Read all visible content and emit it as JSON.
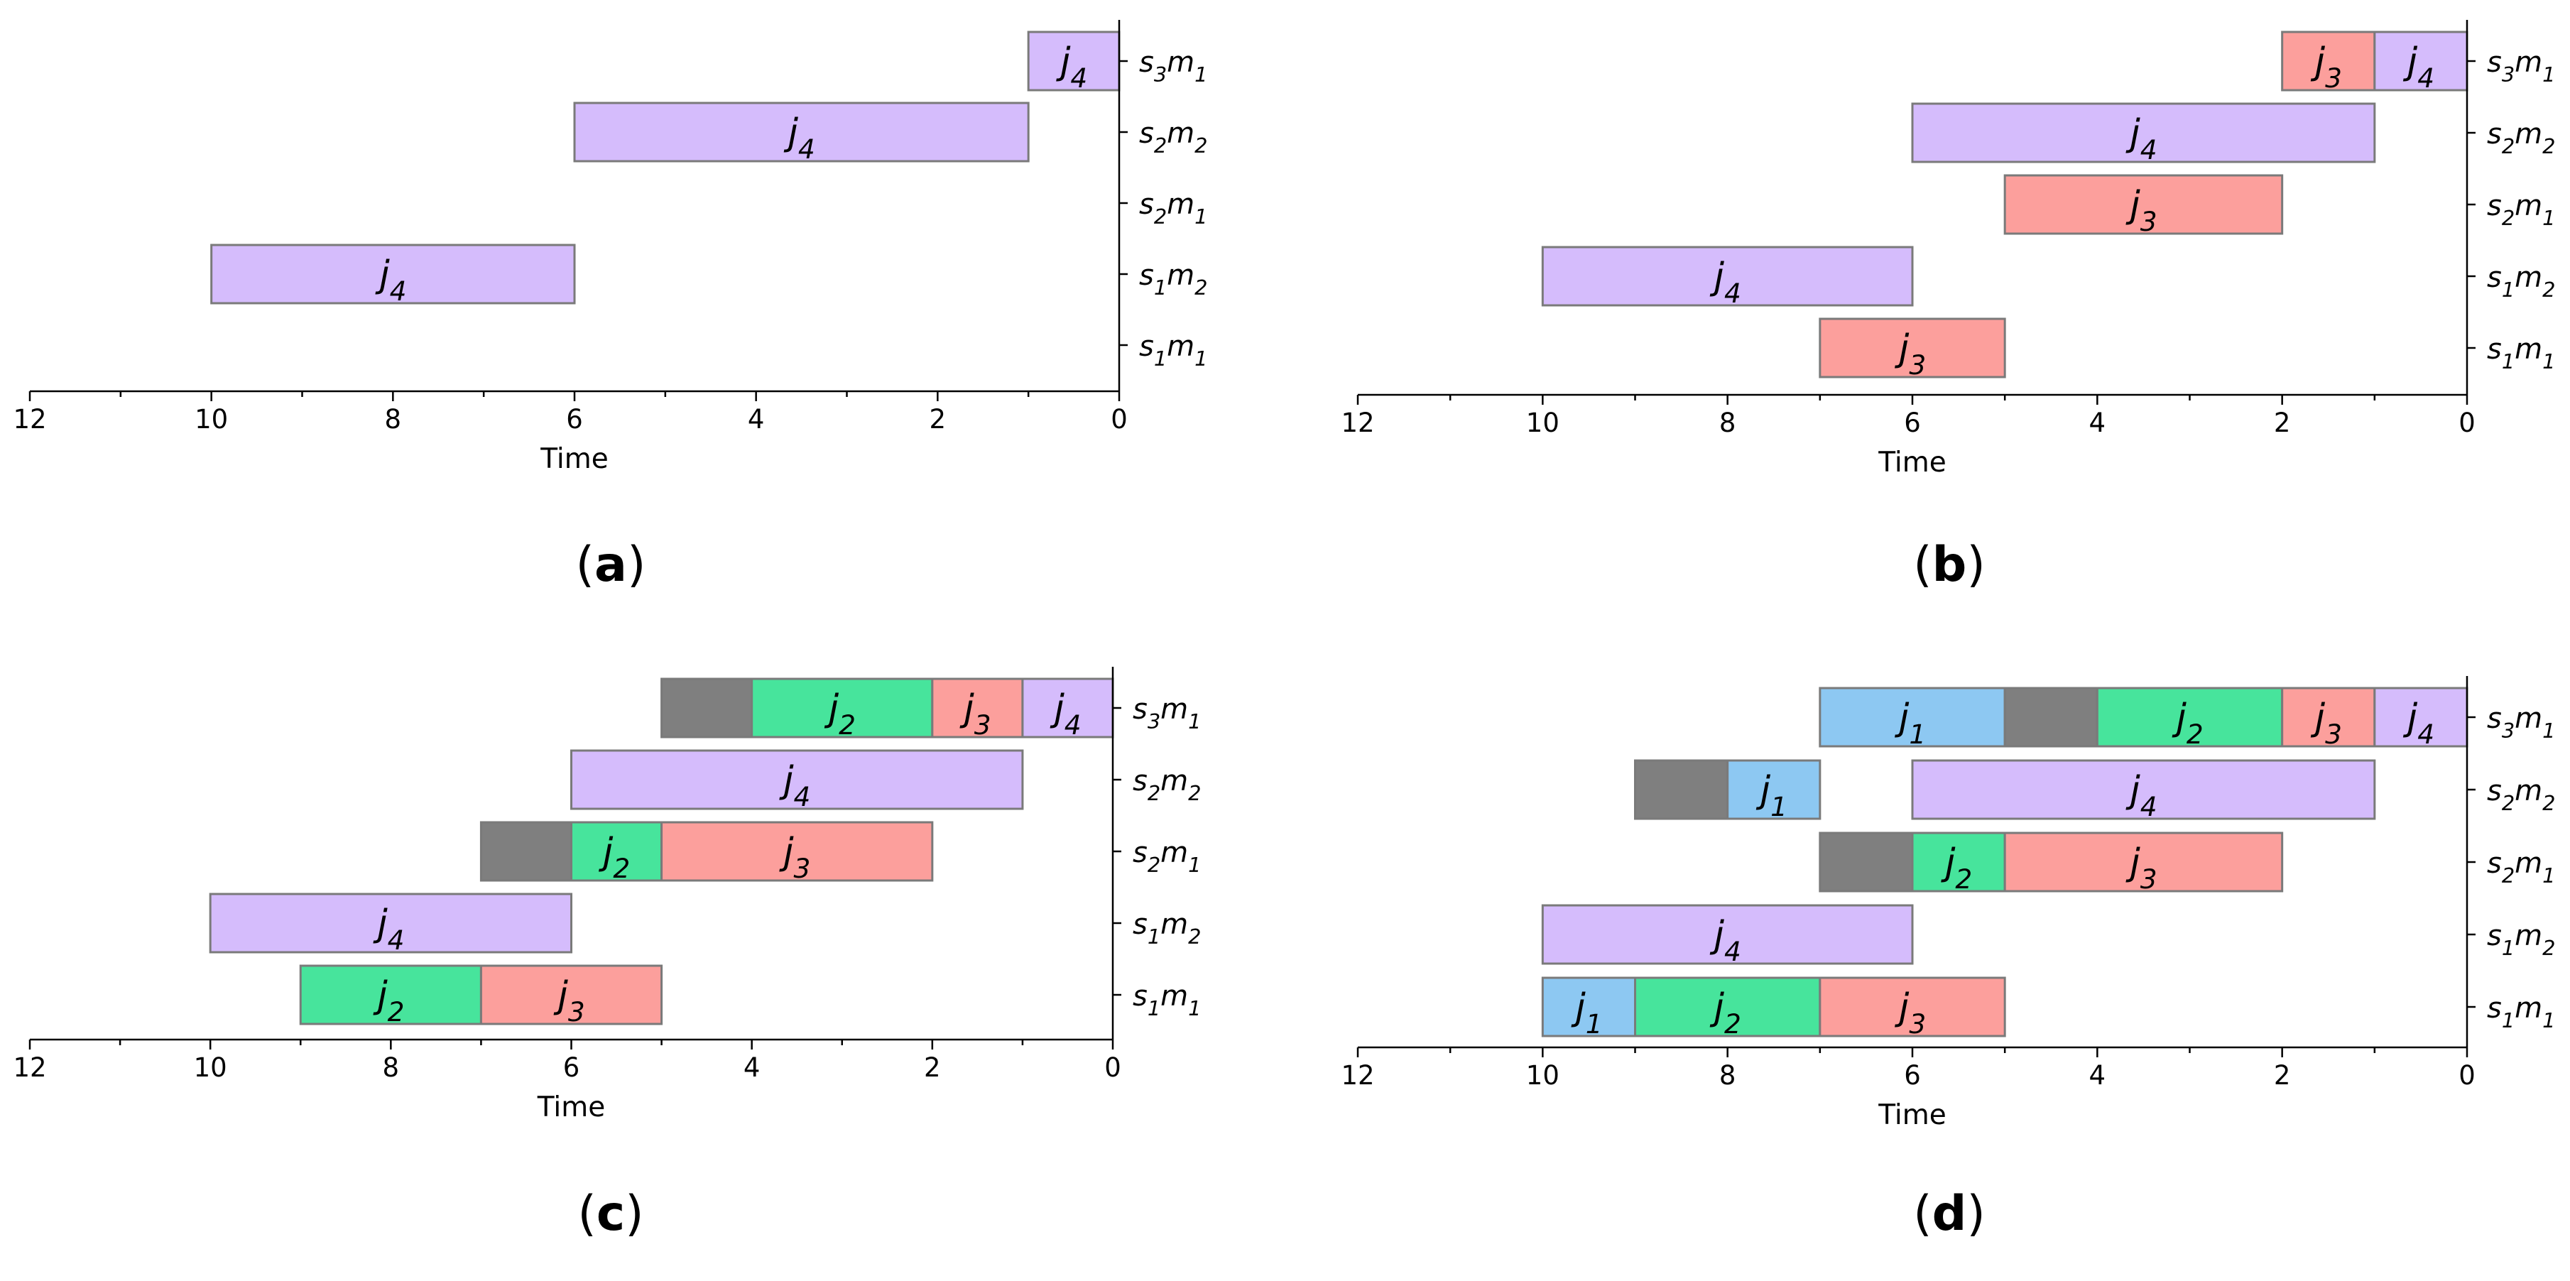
{
  "colors": {
    "j1": "#8dc8f2",
    "j2": "#47e49c",
    "j3": "#fc9f9c",
    "j4": "#d5bcfc",
    "idle": "#7f7f7f"
  },
  "chart_data": [
    {
      "type": "gantt",
      "caption": "a",
      "xlabel": "Time",
      "xlim": [
        12,
        0
      ],
      "x_ticks": [
        12,
        10,
        8,
        6,
        4,
        2,
        0
      ],
      "x_minor_ticks": [
        11,
        9,
        7,
        5,
        3,
        1
      ],
      "rows": [
        {
          "id": "s1m1",
          "stage": "1",
          "machine": "1"
        },
        {
          "id": "s1m2",
          "stage": "1",
          "machine": "2"
        },
        {
          "id": "s2m1",
          "stage": "2",
          "machine": "1"
        },
        {
          "id": "s2m2",
          "stage": "2",
          "machine": "2"
        },
        {
          "id": "s3m1",
          "stage": "3",
          "machine": "1"
        }
      ],
      "tasks": [
        {
          "row": "s3m1",
          "start": 1,
          "end": 0,
          "job": "4",
          "kind": "j4"
        },
        {
          "row": "s2m2",
          "start": 6,
          "end": 1,
          "job": "4",
          "kind": "j4"
        },
        {
          "row": "s1m2",
          "start": 10,
          "end": 6,
          "job": "4",
          "kind": "j4"
        }
      ]
    },
    {
      "type": "gantt",
      "caption": "b",
      "xlabel": "Time",
      "xlim": [
        12,
        0
      ],
      "x_ticks": [
        12,
        10,
        8,
        6,
        4,
        2,
        0
      ],
      "x_minor_ticks": [
        11,
        9,
        7,
        5,
        3,
        1
      ],
      "rows": [
        {
          "id": "s1m1",
          "stage": "1",
          "machine": "1"
        },
        {
          "id": "s1m2",
          "stage": "1",
          "machine": "2"
        },
        {
          "id": "s2m1",
          "stage": "2",
          "machine": "1"
        },
        {
          "id": "s2m2",
          "stage": "2",
          "machine": "2"
        },
        {
          "id": "s3m1",
          "stage": "3",
          "machine": "1"
        }
      ],
      "tasks": [
        {
          "row": "s3m1",
          "start": 2,
          "end": 1,
          "job": "3",
          "kind": "j3"
        },
        {
          "row": "s3m1",
          "start": 1,
          "end": 0,
          "job": "4",
          "kind": "j4"
        },
        {
          "row": "s2m2",
          "start": 6,
          "end": 1,
          "job": "4",
          "kind": "j4"
        },
        {
          "row": "s2m1",
          "start": 5,
          "end": 2,
          "job": "3",
          "kind": "j3"
        },
        {
          "row": "s1m2",
          "start": 10,
          "end": 6,
          "job": "4",
          "kind": "j4"
        },
        {
          "row": "s1m1",
          "start": 7,
          "end": 5,
          "job": "3",
          "kind": "j3"
        }
      ]
    },
    {
      "type": "gantt",
      "caption": "c",
      "xlabel": "Time",
      "xlim": [
        12,
        0
      ],
      "x_ticks": [
        12,
        10,
        8,
        6,
        4,
        2,
        0
      ],
      "x_minor_ticks": [
        11,
        9,
        7,
        5,
        3,
        1
      ],
      "rows": [
        {
          "id": "s1m1",
          "stage": "1",
          "machine": "1"
        },
        {
          "id": "s1m2",
          "stage": "1",
          "machine": "2"
        },
        {
          "id": "s2m1",
          "stage": "2",
          "machine": "1"
        },
        {
          "id": "s2m2",
          "stage": "2",
          "machine": "2"
        },
        {
          "id": "s3m1",
          "stage": "3",
          "machine": "1"
        }
      ],
      "tasks": [
        {
          "row": "s3m1",
          "start": 5,
          "end": 4,
          "job": "",
          "kind": "idle"
        },
        {
          "row": "s3m1",
          "start": 4,
          "end": 2,
          "job": "2",
          "kind": "j2"
        },
        {
          "row": "s3m1",
          "start": 2,
          "end": 1,
          "job": "3",
          "kind": "j3"
        },
        {
          "row": "s3m1",
          "start": 1,
          "end": 0,
          "job": "4",
          "kind": "j4"
        },
        {
          "row": "s2m2",
          "start": 6,
          "end": 1,
          "job": "4",
          "kind": "j4"
        },
        {
          "row": "s2m1",
          "start": 7,
          "end": 6,
          "job": "",
          "kind": "idle"
        },
        {
          "row": "s2m1",
          "start": 6,
          "end": 5,
          "job": "2",
          "kind": "j2"
        },
        {
          "row": "s2m1",
          "start": 5,
          "end": 2,
          "job": "3",
          "kind": "j3"
        },
        {
          "row": "s1m2",
          "start": 10,
          "end": 6,
          "job": "4",
          "kind": "j4"
        },
        {
          "row": "s1m1",
          "start": 9,
          "end": 7,
          "job": "2",
          "kind": "j2"
        },
        {
          "row": "s1m1",
          "start": 7,
          "end": 5,
          "job": "3",
          "kind": "j3"
        }
      ]
    },
    {
      "type": "gantt",
      "caption": "d",
      "xlabel": "Time",
      "xlim": [
        12,
        0
      ],
      "x_ticks": [
        12,
        10,
        8,
        6,
        4,
        2,
        0
      ],
      "x_minor_ticks": [
        11,
        9,
        7,
        5,
        3,
        1
      ],
      "rows": [
        {
          "id": "s1m1",
          "stage": "1",
          "machine": "1"
        },
        {
          "id": "s1m2",
          "stage": "1",
          "machine": "2"
        },
        {
          "id": "s2m1",
          "stage": "2",
          "machine": "1"
        },
        {
          "id": "s2m2",
          "stage": "2",
          "machine": "2"
        },
        {
          "id": "s3m1",
          "stage": "3",
          "machine": "1"
        }
      ],
      "tasks": [
        {
          "row": "s3m1",
          "start": 7,
          "end": 5,
          "job": "1",
          "kind": "j1"
        },
        {
          "row": "s3m1",
          "start": 5,
          "end": 4,
          "job": "",
          "kind": "idle"
        },
        {
          "row": "s3m1",
          "start": 4,
          "end": 2,
          "job": "2",
          "kind": "j2"
        },
        {
          "row": "s3m1",
          "start": 2,
          "end": 1,
          "job": "3",
          "kind": "j3"
        },
        {
          "row": "s3m1",
          "start": 1,
          "end": 0,
          "job": "4",
          "kind": "j4"
        },
        {
          "row": "s2m2",
          "start": 9,
          "end": 8,
          "job": "",
          "kind": "idle"
        },
        {
          "row": "s2m2",
          "start": 8,
          "end": 7,
          "job": "1",
          "kind": "j1"
        },
        {
          "row": "s2m2",
          "start": 6,
          "end": 1,
          "job": "4",
          "kind": "j4"
        },
        {
          "row": "s2m1",
          "start": 7,
          "end": 6,
          "job": "",
          "kind": "idle"
        },
        {
          "row": "s2m1",
          "start": 6,
          "end": 5,
          "job": "2",
          "kind": "j2"
        },
        {
          "row": "s2m1",
          "start": 5,
          "end": 2,
          "job": "3",
          "kind": "j3"
        },
        {
          "row": "s1m2",
          "start": 10,
          "end": 6,
          "job": "4",
          "kind": "j4"
        },
        {
          "row": "s1m1",
          "start": 10,
          "end": 9,
          "job": "1",
          "kind": "j1"
        },
        {
          "row": "s1m1",
          "start": 9,
          "end": 7,
          "job": "2",
          "kind": "j2"
        },
        {
          "row": "s1m1",
          "start": 7,
          "end": 5,
          "job": "3",
          "kind": "j3"
        }
      ]
    }
  ]
}
